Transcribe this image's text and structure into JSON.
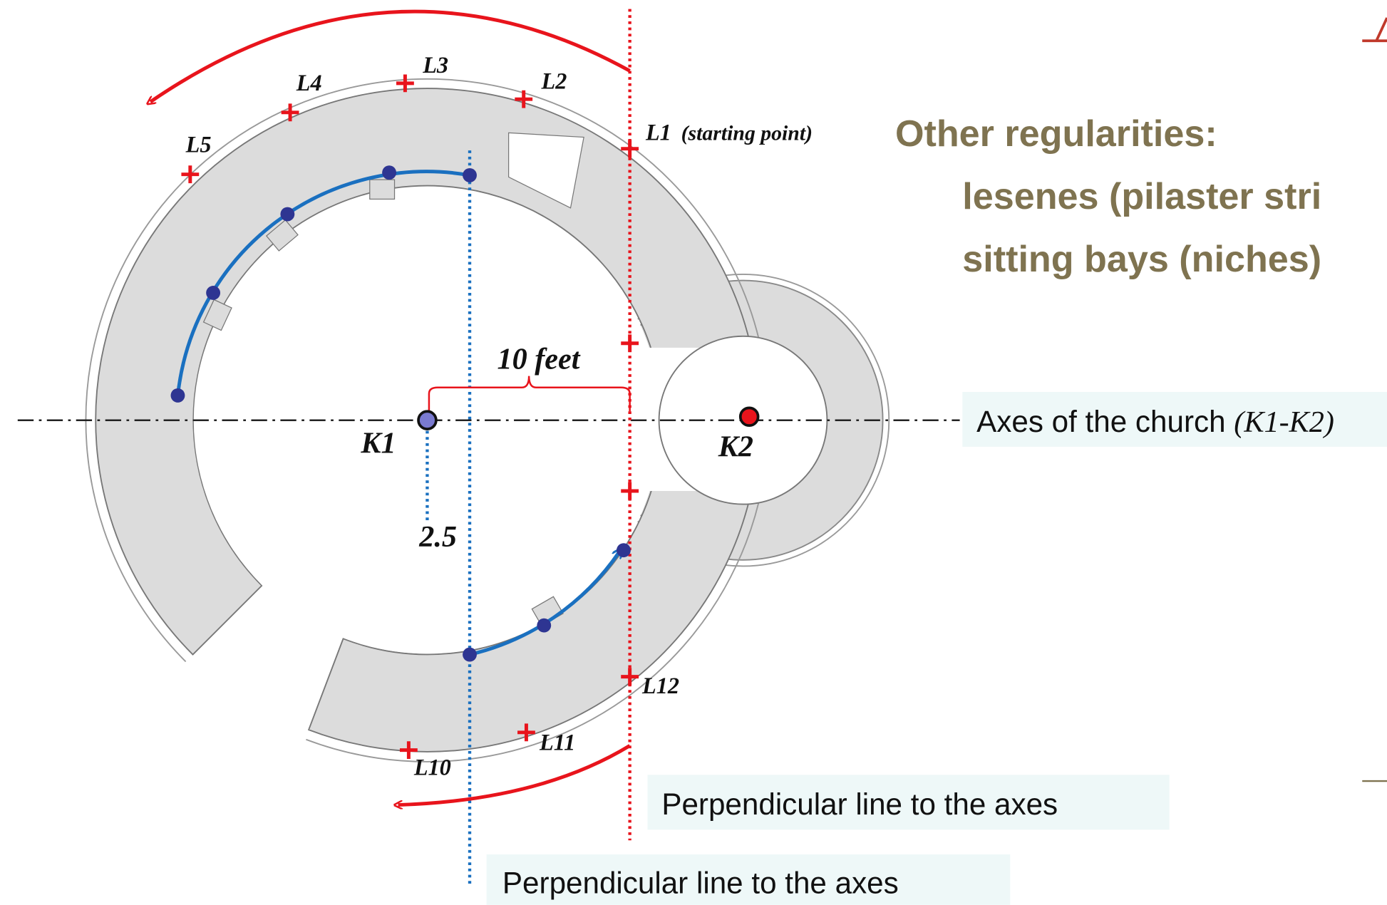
{
  "diagram": {
    "lesene_labels": [
      "L1",
      "L2",
      "L3",
      "L4",
      "L5",
      "L10",
      "L11",
      "L12"
    ],
    "starting_point": "(starting point)",
    "distance": "10 feet",
    "offset": "2.5",
    "centers": [
      "K1",
      "K2"
    ],
    "heading": {
      "title": "Other regularities:",
      "lines": [
        "lesenes (pilaster stri",
        "sitting bays (niches)"
      ]
    },
    "axes_note": {
      "text": "Axes of the church",
      "ref": "(K1-K2)"
    },
    "perpendicular_notes": [
      "Perpendicular line to the axes",
      "Perpendicular line to the axes"
    ]
  }
}
